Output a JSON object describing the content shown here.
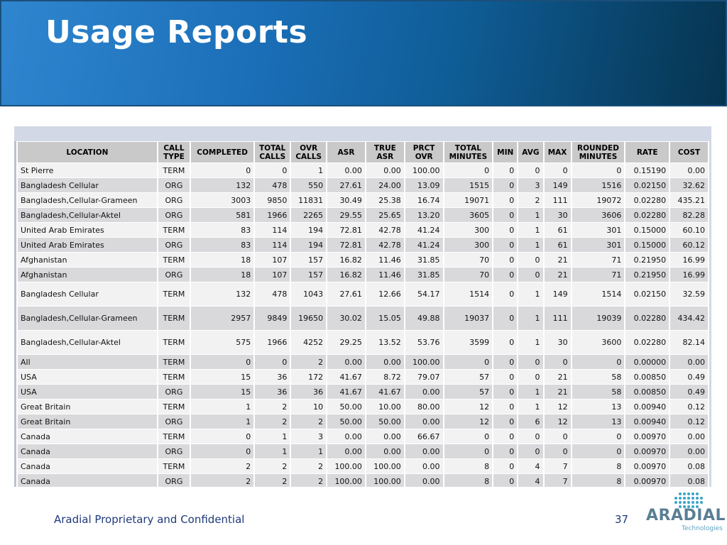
{
  "slide": {
    "title": "Usage Reports",
    "footer": "Aradial Proprietary and Confidential",
    "page_number": "37"
  },
  "logo": {
    "name": "Aradial",
    "word": "ARADIAL",
    "sub": "Technologies",
    "icon": "dotted-dish-icon"
  },
  "colors": {
    "banner_accent": "#1b6fb8",
    "footer_text": "#1f3a7a"
  },
  "report": {
    "columns": [
      "LOCATION",
      "CALL\nTYPE",
      "COMPLETED",
      "TOTAL\nCALLS",
      "OVR\nCALLS",
      "ASR",
      "TRUE\nASR",
      "PRCT\nOVR",
      "TOTAL\nMINUTES",
      "MIN",
      "AVG",
      "MAX",
      "ROUNDED\nMINUTES",
      "RATE",
      "COST"
    ],
    "rows": [
      [
        "St Pierre",
        "TERM",
        "0",
        "0",
        "1",
        "0.00",
        "0.00",
        "100.00",
        "0",
        "0",
        "0",
        "0",
        "0",
        "0.15190",
        "0.00"
      ],
      [
        "Bangladesh Cellular",
        "ORG",
        "132",
        "478",
        "550",
        "27.61",
        "24.00",
        "13.09",
        "1515",
        "0",
        "3",
        "149",
        "1516",
        "0.02150",
        "32.62"
      ],
      [
        "Bangladesh,Cellular-Grameen",
        "ORG",
        "3003",
        "9850",
        "11831",
        "30.49",
        "25.38",
        "16.74",
        "19071",
        "0",
        "2",
        "111",
        "19072",
        "0.02280",
        "435.21"
      ],
      [
        "Bangladesh,Cellular-Aktel",
        "ORG",
        "581",
        "1966",
        "2265",
        "29.55",
        "25.65",
        "13.20",
        "3605",
        "0",
        "1",
        "30",
        "3606",
        "0.02280",
        "82.28"
      ],
      [
        "United Arab Emirates",
        "TERM",
        "83",
        "114",
        "194",
        "72.81",
        "42.78",
        "41.24",
        "300",
        "0",
        "1",
        "61",
        "301",
        "0.15000",
        "60.10"
      ],
      [
        "United Arab Emirates",
        "ORG",
        "83",
        "114",
        "194",
        "72.81",
        "42.78",
        "41.24",
        "300",
        "0",
        "1",
        "61",
        "301",
        "0.15000",
        "60.12"
      ],
      [
        "Afghanistan",
        "TERM",
        "18",
        "107",
        "157",
        "16.82",
        "11.46",
        "31.85",
        "70",
        "0",
        "0",
        "21",
        "71",
        "0.21950",
        "16.99"
      ],
      [
        "Afghanistan",
        "ORG",
        "18",
        "107",
        "157",
        "16.82",
        "11.46",
        "31.85",
        "70",
        "0",
        "0",
        "21",
        "71",
        "0.21950",
        "16.99"
      ],
      [
        "Bangladesh Cellular",
        "TERM",
        "132",
        "478",
        "1043",
        "27.61",
        "12.66",
        "54.17",
        "1514",
        "0",
        "1",
        "149",
        "1514",
        "0.02150",
        "32.59"
      ],
      [
        "Bangladesh,Cellular-Grameen",
        "TERM",
        "2957",
        "9849",
        "19650",
        "30.02",
        "15.05",
        "49.88",
        "19037",
        "0",
        "1",
        "111",
        "19039",
        "0.02280",
        "434.42"
      ],
      [
        "Bangladesh,Cellular-Aktel",
        "TERM",
        "575",
        "1966",
        "4252",
        "29.25",
        "13.52",
        "53.76",
        "3599",
        "0",
        "1",
        "30",
        "3600",
        "0.02280",
        "82.14"
      ],
      [
        "All",
        "TERM",
        "0",
        "0",
        "2",
        "0.00",
        "0.00",
        "100.00",
        "0",
        "0",
        "0",
        "0",
        "0",
        "0.00000",
        "0.00"
      ],
      [
        "USA",
        "TERM",
        "15",
        "36",
        "172",
        "41.67",
        "8.72",
        "79.07",
        "57",
        "0",
        "0",
        "21",
        "58",
        "0.00850",
        "0.49"
      ],
      [
        "USA",
        "ORG",
        "15",
        "36",
        "36",
        "41.67",
        "41.67",
        "0.00",
        "57",
        "0",
        "1",
        "21",
        "58",
        "0.00850",
        "0.49"
      ],
      [
        "Great Britain",
        "TERM",
        "1",
        "2",
        "10",
        "50.00",
        "10.00",
        "80.00",
        "12",
        "0",
        "1",
        "12",
        "13",
        "0.00940",
        "0.12"
      ],
      [
        "Great Britain",
        "ORG",
        "1",
        "2",
        "2",
        "50.00",
        "50.00",
        "0.00",
        "12",
        "0",
        "6",
        "12",
        "13",
        "0.00940",
        "0.12"
      ],
      [
        "Canada",
        "TERM",
        "0",
        "1",
        "3",
        "0.00",
        "0.00",
        "66.67",
        "0",
        "0",
        "0",
        "0",
        "0",
        "0.00970",
        "0.00"
      ],
      [
        "Canada",
        "ORG",
        "0",
        "1",
        "1",
        "0.00",
        "0.00",
        "0.00",
        "0",
        "0",
        "0",
        "0",
        "0",
        "0.00970",
        "0.00"
      ],
      [
        "Canada",
        "TERM",
        "2",
        "2",
        "2",
        "100.00",
        "100.00",
        "0.00",
        "8",
        "0",
        "4",
        "7",
        "8",
        "0.00970",
        "0.08"
      ],
      [
        "Canada",
        "ORG",
        "2",
        "2",
        "2",
        "100.00",
        "100.00",
        "0.00",
        "8",
        "0",
        "4",
        "7",
        "8",
        "0.00970",
        "0.08"
      ]
    ]
  }
}
